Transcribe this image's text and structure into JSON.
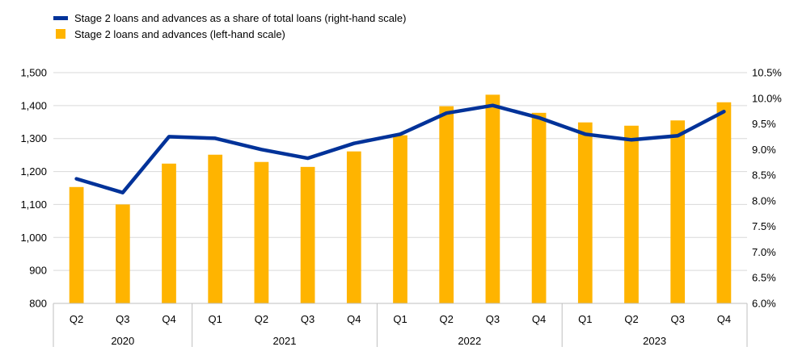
{
  "colors": {
    "bar": "#FFB400",
    "line": "#003299",
    "grid": "#d9d9d9",
    "axis": "#bfbfbf",
    "text": "#000000"
  },
  "legend": {
    "line_label": "Stage 2 loans and advances as a share of total loans (right-hand scale)",
    "bar_label": "Stage 2 loans and advances (left-hand scale)"
  },
  "chart_data": {
    "type": "bar",
    "title": "",
    "xlabel": "",
    "categories": [
      "Q2",
      "Q3",
      "Q4",
      "Q1",
      "Q2",
      "Q3",
      "Q4",
      "Q1",
      "Q2",
      "Q3",
      "Q4",
      "Q1",
      "Q2",
      "Q3",
      "Q4"
    ],
    "year_groups": [
      {
        "label": "2020",
        "count": 3
      },
      {
        "label": "2021",
        "count": 4
      },
      {
        "label": "2022",
        "count": 4
      },
      {
        "label": "2023",
        "count": 4
      }
    ],
    "series": [
      {
        "name": "Stage 2 loans and advances (left-hand scale)",
        "type": "bar",
        "axis": "left",
        "values": [
          1153,
          1100,
          1224,
          1251,
          1229,
          1214,
          1261,
          1310,
          1398,
          1433,
          1378,
          1349,
          1339,
          1355,
          1410
        ]
      },
      {
        "name": "Stage 2 loans and advances as a share of total loans (right-hand scale)",
        "type": "line",
        "axis": "right",
        "values": [
          8.43,
          8.16,
          9.25,
          9.22,
          9.0,
          8.83,
          9.12,
          9.3,
          9.71,
          9.86,
          9.62,
          9.3,
          9.19,
          9.27,
          9.74
        ]
      }
    ],
    "left_axis": {
      "min": 800,
      "max": 1500,
      "ticks": [
        800,
        900,
        1000,
        1100,
        1200,
        1300,
        1400,
        1500
      ],
      "tick_labels": [
        "800",
        "900",
        "1,000",
        "1,100",
        "1,200",
        "1,300",
        "1,400",
        "1,500"
      ]
    },
    "right_axis": {
      "min": 6.0,
      "max": 10.5,
      "ticks": [
        6.0,
        6.5,
        7.0,
        7.5,
        8.0,
        8.5,
        9.0,
        9.5,
        10.0,
        10.5
      ],
      "tick_labels": [
        "6.0%",
        "6.5%",
        "7.0%",
        "7.5%",
        "8.0%",
        "8.5%",
        "9.0%",
        "9.5%",
        "10.0%",
        "10.5%"
      ]
    },
    "grid": true,
    "legend_position": "top-left"
  }
}
